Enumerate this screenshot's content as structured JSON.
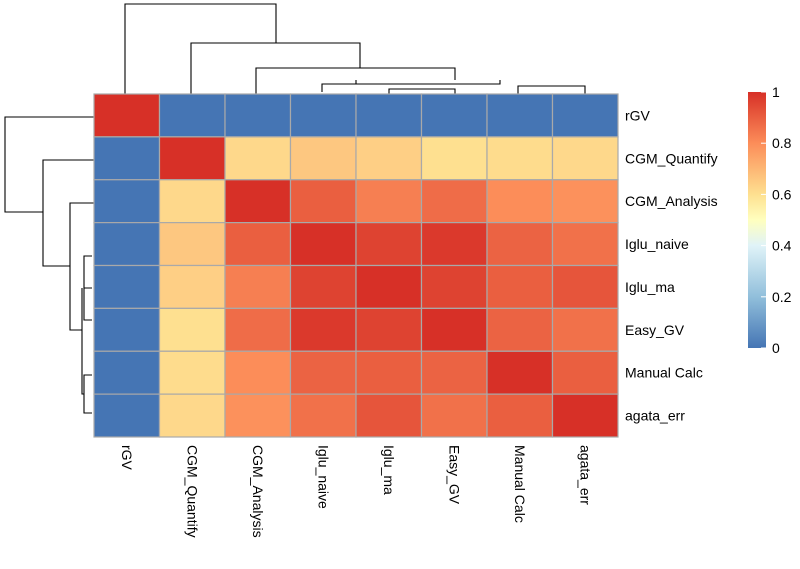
{
  "chart_data": {
    "type": "heatmap",
    "title": "",
    "rows": [
      "rGV",
      "CGM_Quantify",
      "CGM_Analysis",
      "Iglu_naive",
      "Iglu_ma",
      "Easy_GV",
      "Manual Calc",
      "agata_err"
    ],
    "columns": [
      "rGV",
      "CGM_Quantify",
      "CGM_Analysis",
      "Iglu_naive",
      "Iglu_ma",
      "Easy_GV",
      "Manual Calc",
      "agata_err"
    ],
    "values": [
      [
        1.0,
        0.0,
        0.0,
        0.0,
        0.0,
        0.0,
        0.0,
        0.0
      ],
      [
        0.0,
        1.0,
        0.62,
        0.66,
        0.64,
        0.6,
        0.61,
        0.62
      ],
      [
        0.0,
        0.62,
        1.0,
        0.9,
        0.83,
        0.87,
        0.8,
        0.79
      ],
      [
        0.0,
        0.66,
        0.9,
        1.0,
        0.96,
        0.98,
        0.89,
        0.86
      ],
      [
        0.0,
        0.64,
        0.83,
        0.96,
        1.0,
        0.96,
        0.9,
        0.92
      ],
      [
        0.0,
        0.6,
        0.87,
        0.98,
        0.96,
        1.0,
        0.89,
        0.86
      ],
      [
        0.0,
        0.61,
        0.8,
        0.89,
        0.9,
        0.89,
        1.0,
        0.9
      ],
      [
        0.0,
        0.62,
        0.79,
        0.86,
        0.92,
        0.86,
        0.9,
        1.0
      ]
    ],
    "color_scale": {
      "min": 0,
      "max": 1,
      "stops": [
        {
          "value": 0.0,
          "color": "#4575b4"
        },
        {
          "value": 0.2,
          "color": "#91bfdb"
        },
        {
          "value": 0.4,
          "color": "#e0f3f8"
        },
        {
          "value": 0.5,
          "color": "#ffffbf"
        },
        {
          "value": 0.6,
          "color": "#fee090"
        },
        {
          "value": 0.8,
          "color": "#fc8d59"
        },
        {
          "value": 1.0,
          "color": "#d73027"
        }
      ]
    },
    "legend": {
      "position": "right",
      "ticks": [
        "0",
        "0.2",
        "0.4",
        "0.6",
        "0.8",
        "1"
      ]
    },
    "dendrograms": [
      "top",
      "left"
    ]
  }
}
